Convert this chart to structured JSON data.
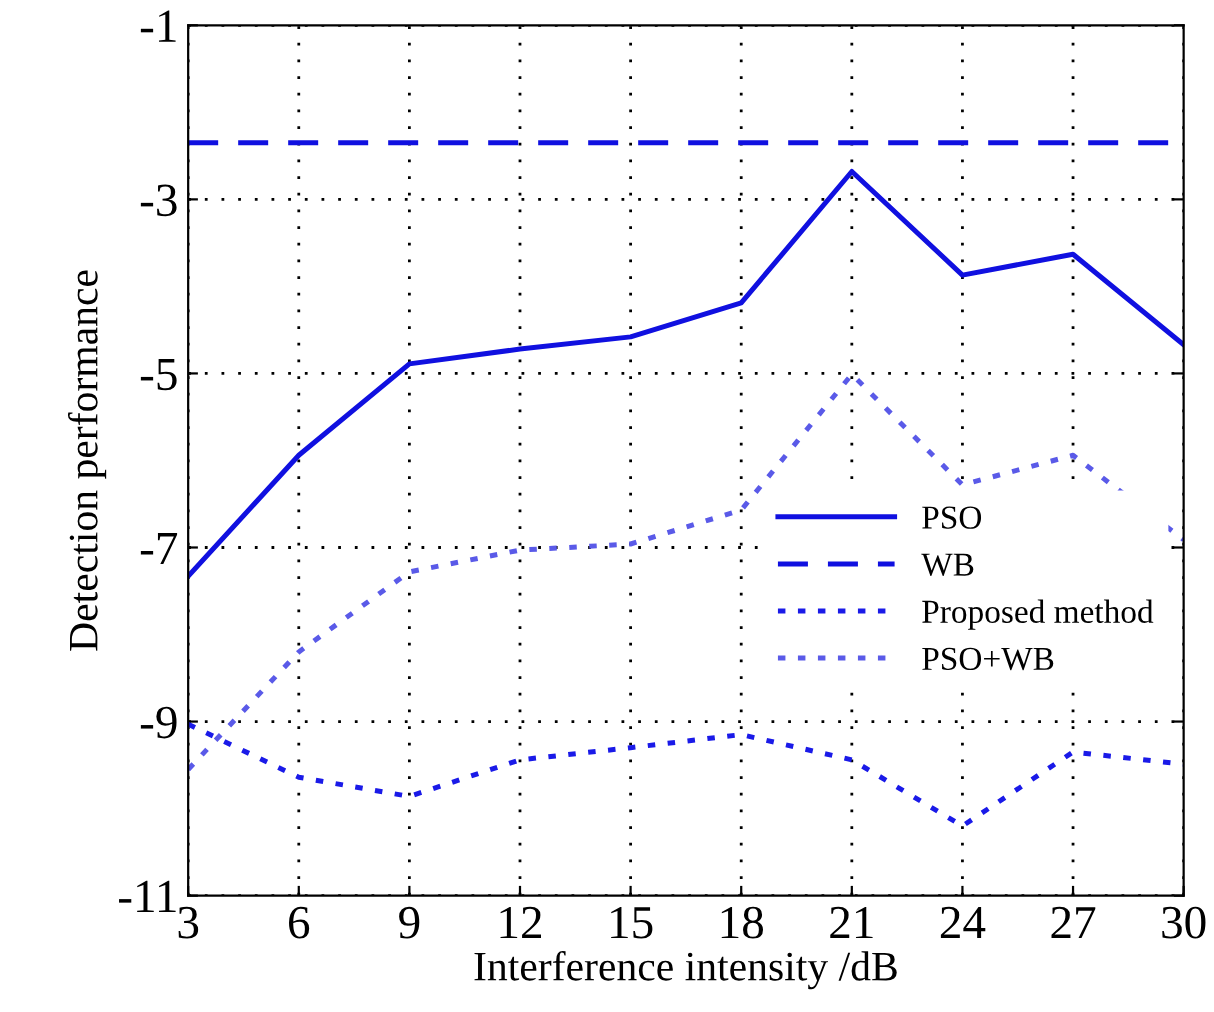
{
  "chart_data": {
    "type": "line",
    "xlabel": "Interference intensity /dB",
    "ylabel": "Detection performance",
    "x": [
      3,
      6,
      9,
      12,
      15,
      18,
      21,
      24,
      27,
      30
    ],
    "series": [
      {
        "name": "PSO",
        "color": "#1010e0",
        "line_style": "solid",
        "values": [
          -7.33,
          -5.94,
          -4.89,
          -4.72,
          -4.58,
          -4.19,
          -2.68,
          -3.87,
          -3.63,
          -4.67
        ]
      },
      {
        "name": "WB",
        "color": "#1010e0",
        "line_style": "dashed",
        "values": [
          -2.35,
          -2.35,
          -2.35,
          -2.35,
          -2.35,
          -2.35,
          -2.35,
          -2.35,
          -2.35,
          -2.35
        ]
      },
      {
        "name": "Proposed method",
        "color": "#1a1ae8",
        "line_style": "dotted",
        "values": [
          -9.03,
          -9.64,
          -9.86,
          -9.44,
          -9.3,
          -9.15,
          -9.44,
          -10.2,
          -9.35,
          -9.49
        ]
      },
      {
        "name": "PSO+WB",
        "color": "#5a5ae8",
        "line_style": "dotted",
        "values": [
          -9.55,
          -8.2,
          -7.28,
          -7.03,
          -6.96,
          -6.57,
          -5.01,
          -6.28,
          -5.94,
          -6.91
        ]
      }
    ],
    "xlim": [
      3,
      30
    ],
    "xticks": [
      3,
      6,
      9,
      12,
      15,
      18,
      21,
      24,
      27,
      30
    ],
    "ylim": [
      -11,
      -1
    ],
    "yticks": [
      -11,
      -9,
      -7,
      -5,
      -3,
      -1
    ],
    "grid": true,
    "legend": "right",
    "marker": "none"
  }
}
